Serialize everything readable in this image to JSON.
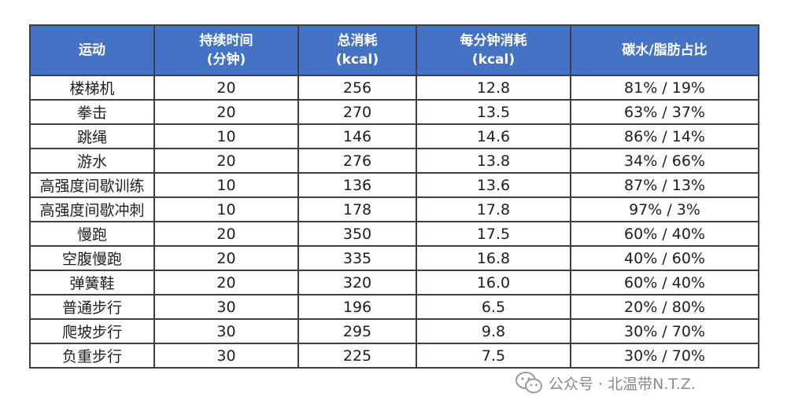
{
  "table": {
    "headers": [
      [
        "运动"
      ],
      [
        "持续时间",
        "(分钟)"
      ],
      [
        "总消耗",
        "(kcal)"
      ],
      [
        "每分钟消耗",
        "(kcal)"
      ],
      [
        "碳水/脂肪占比"
      ]
    ],
    "rows": [
      [
        "楼梯机",
        "20",
        "256",
        "12.8",
        "81% / 19%"
      ],
      [
        "拳击",
        "20",
        "270",
        "13.5",
        "63% / 37%"
      ],
      [
        "跳绳",
        "10",
        "146",
        "14.6",
        "86% / 14%"
      ],
      [
        "游水",
        "20",
        "276",
        "13.8",
        "34% / 66%"
      ],
      [
        "高强度间歇训练",
        "10",
        "136",
        "13.6",
        "87% / 13%"
      ],
      [
        "高强度间歇冲刺",
        "10",
        "178",
        "17.8",
        "97% / 3%"
      ],
      [
        "慢跑",
        "20",
        "350",
        "17.5",
        "60% / 40%"
      ],
      [
        "空腹慢跑",
        "20",
        "335",
        "16.8",
        "40% / 60%"
      ],
      [
        "弹簧鞋",
        "20",
        "320",
        "16.0",
        "60% / 40%"
      ],
      [
        "普通步行",
        "30",
        "196",
        "6.5",
        "20% / 80%"
      ],
      [
        "爬坡步行",
        "30",
        "295",
        "9.8",
        "30% / 70%"
      ],
      [
        "负重步行",
        "30",
        "225",
        "7.5",
        "30% / 70%"
      ]
    ]
  },
  "watermark": {
    "icon": "wechat-icon",
    "text": "公众号 · 北温带N.T.Z."
  },
  "colors": {
    "header_bg": "#4472c4",
    "header_text": "#ffffff",
    "border": "#3a3f4a",
    "watermark": "#8a8a8a"
  }
}
